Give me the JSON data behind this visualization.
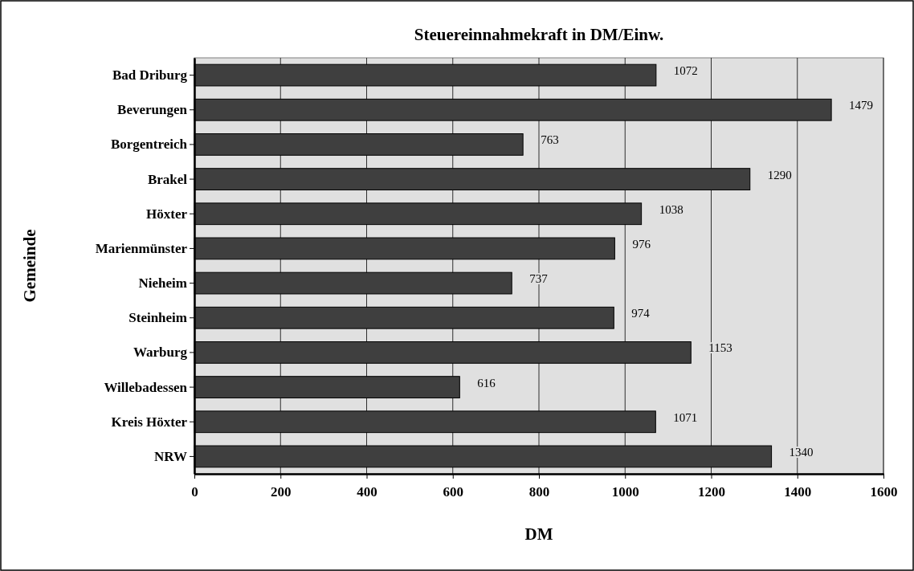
{
  "chart_data": {
    "type": "bar",
    "orientation": "horizontal",
    "title": "Steuereinnahmekraft in DM/Einw.",
    "xlabel": "DM",
    "ylabel": "Gemeinde",
    "categories": [
      "Bad Driburg",
      "Beverungen",
      "Borgentreich",
      "Brakel",
      "Höxter",
      "Marienmünster",
      "Nieheim",
      "Steinheim",
      "Warburg",
      "Willebadessen",
      "Kreis Höxter",
      "NRW"
    ],
    "values": [
      1072,
      1479,
      763,
      1290,
      1038,
      976,
      737,
      974,
      1153,
      616,
      1071,
      1340
    ],
    "color": "#3f3f3f",
    "xlim": [
      0,
      1600
    ],
    "xticks": [
      0,
      200,
      400,
      600,
      800,
      1000,
      1200,
      1400,
      1600
    ],
    "grid": "x",
    "data_labels": true
  }
}
